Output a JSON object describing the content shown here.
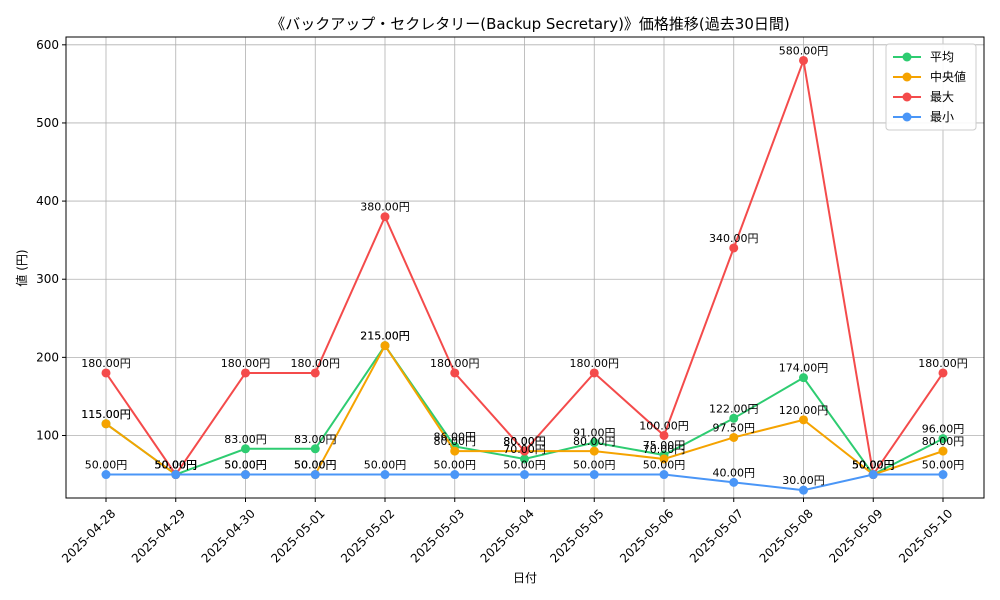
{
  "chart_data": {
    "type": "line",
    "title": "《バックアップ・セクレタリー(Backup Secretary)》価格推移(過去30日間)",
    "xlabel": "日付",
    "ylabel": "値 (円)",
    "categories": [
      "2025-04-28",
      "2025-04-29",
      "2025-04-30",
      "2025-05-01",
      "2025-05-02",
      "2025-05-03",
      "2025-05-04",
      "2025-05-05",
      "2025-05-06",
      "2025-05-07",
      "2025-05-08",
      "2025-05-09",
      "2025-05-10"
    ],
    "ylim": [
      20,
      610
    ],
    "yticks": [
      100,
      200,
      300,
      400,
      500,
      600
    ],
    "grid": true,
    "legend_position": "top-right",
    "value_suffix": "円",
    "series": [
      {
        "name": "平均",
        "color": "#2ecc71",
        "values": [
          115,
          50,
          83,
          83,
          215,
          86,
          70,
          91,
          75,
          122,
          174,
          50,
          96
        ]
      },
      {
        "name": "中央値",
        "color": "#f5a300",
        "values": [
          115,
          50,
          50,
          50,
          215,
          80,
          80,
          80,
          70,
          97.5,
          120,
          50,
          80
        ]
      },
      {
        "name": "最大",
        "color": "#f44b4b",
        "values": [
          180,
          50,
          180,
          180,
          380,
          180,
          80,
          180,
          100,
          340,
          580,
          50,
          180
        ]
      },
      {
        "name": "最小",
        "color": "#4a96f7",
        "values": [
          50,
          50,
          50,
          50,
          50,
          50,
          50,
          50,
          50,
          40,
          30,
          50,
          50
        ]
      }
    ]
  }
}
